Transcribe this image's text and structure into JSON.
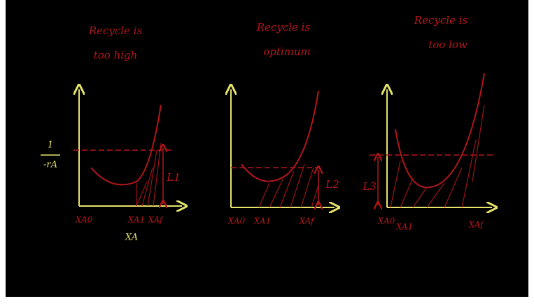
{
  "y_axis_label": {
    "numerator": "1",
    "denominator": "-rA"
  },
  "x_axis_label": "XA",
  "panels": [
    {
      "title": [
        "Recycle is",
        "too high"
      ],
      "x_labels": [
        "XA0",
        "XA1",
        "XAf"
      ],
      "length_label": "L1"
    },
    {
      "title": [
        "Recycle is",
        "optimum"
      ],
      "x_labels": [
        "XA0",
        "XA1",
        "XAf"
      ],
      "length_label": "L2"
    },
    {
      "title": [
        "Recycle is",
        "too low"
      ],
      "x_labels": [
        "XA0",
        "XA1",
        "XAf"
      ],
      "length_label": "L3"
    }
  ]
}
